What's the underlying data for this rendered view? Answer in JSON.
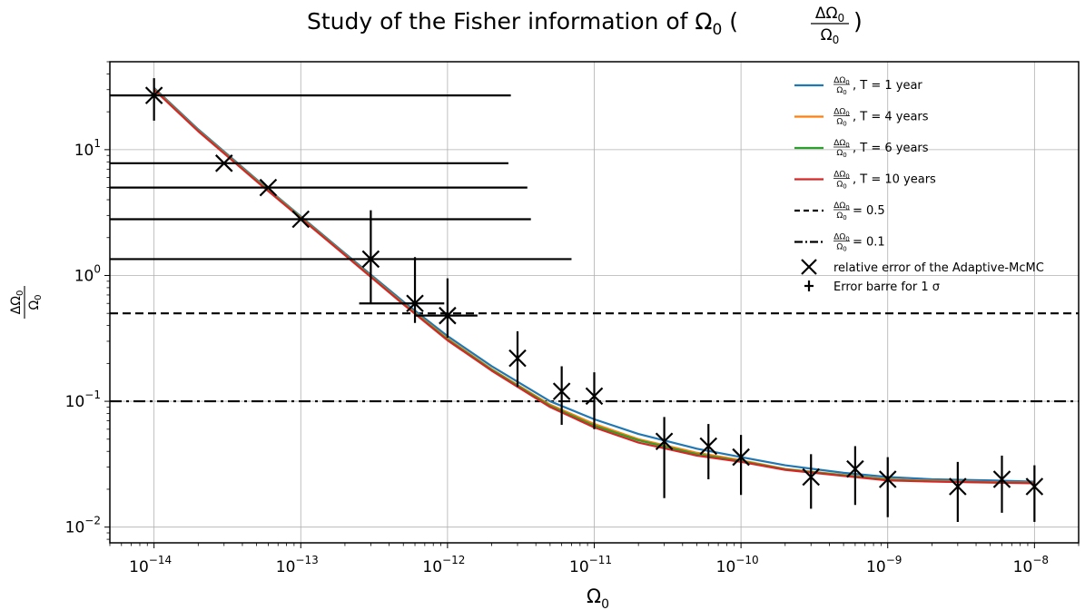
{
  "chart_data": {
    "type": "line",
    "title": "Study of the Fisher information of Ω₀ (ΔΩ₀/Ω₀)",
    "title_parts": {
      "prefix": "Study of the Fisher information of Ω",
      "sub": "0",
      "frac_num": "ΔΩ",
      "frac_num_sub": "0",
      "frac_den": "Ω",
      "frac_den_sub": "0"
    },
    "xlabel": "Ω₀",
    "ylabel": "ΔΩ₀/Ω₀",
    "x_scale": "log",
    "y_scale": "log",
    "xlim": [
      5e-15,
      2e-08
    ],
    "ylim": [
      0.0075,
      50
    ],
    "grid": true,
    "legend_position": "top-right",
    "x_ticks": [
      {
        "value": 1e-14,
        "base": "10",
        "exp": "−14"
      },
      {
        "value": 1e-13,
        "base": "10",
        "exp": "−13"
      },
      {
        "value": 1e-12,
        "base": "10",
        "exp": "−12"
      },
      {
        "value": 1e-11,
        "base": "10",
        "exp": "−11"
      },
      {
        "value": 1e-10,
        "base": "10",
        "exp": "−10"
      },
      {
        "value": 1e-09,
        "base": "10",
        "exp": "−9"
      },
      {
        "value": 1e-08,
        "base": "10",
        "exp": "−8"
      }
    ],
    "y_ticks": [
      {
        "value": 10,
        "base": "10",
        "exp": "1"
      },
      {
        "value": 1,
        "base": "10",
        "exp": "0"
      },
      {
        "value": 0.1,
        "base": "10",
        "exp": "−1"
      },
      {
        "value": 0.01,
        "base": "10",
        "exp": "−2"
      }
    ],
    "series": [
      {
        "name": "ΔΩ₀/Ω₀, T = 1 year",
        "legend_suffix": ", T = 1 year",
        "color": "#1f77b4",
        "style": "solid",
        "x": [
          1e-14,
          2e-14,
          5e-14,
          1e-13,
          2e-13,
          5e-13,
          1e-12,
          2e-12,
          5e-12,
          1e-11,
          2e-11,
          5e-11,
          1e-10,
          2e-10,
          5e-10,
          1e-09,
          2e-09,
          5e-09,
          1e-08
        ],
        "y": [
          31,
          14.5,
          5.8,
          2.95,
          1.5,
          0.62,
          0.33,
          0.19,
          0.1,
          0.072,
          0.055,
          0.042,
          0.036,
          0.031,
          0.027,
          0.025,
          0.024,
          0.0235,
          0.023
        ]
      },
      {
        "name": "ΔΩ₀/Ω₀, T = 4 years",
        "legend_suffix": ", T = 4 years",
        "color": "#ff7f0e",
        "style": "solid",
        "x": [
          1e-14,
          2e-14,
          5e-14,
          1e-13,
          2e-13,
          5e-13,
          1e-12,
          2e-12,
          5e-12,
          1e-11,
          2e-11,
          5e-11,
          1e-10,
          2e-10,
          5e-10,
          1e-09,
          2e-09,
          5e-09,
          1e-08
        ],
        "y": [
          30.5,
          14.2,
          5.7,
          2.9,
          1.47,
          0.6,
          0.315,
          0.18,
          0.094,
          0.066,
          0.05,
          0.039,
          0.034,
          0.029,
          0.026,
          0.024,
          0.0233,
          0.0228,
          0.0225
        ]
      },
      {
        "name": "ΔΩ₀/Ω₀, T = 6 years",
        "legend_suffix": ", T = 6 years",
        "color": "#2ca02c",
        "style": "solid",
        "x": [
          1e-14,
          2e-14,
          5e-14,
          1e-13,
          2e-13,
          5e-13,
          1e-12,
          2e-12,
          5e-12,
          1e-11,
          2e-11,
          5e-11,
          1e-10,
          2e-10,
          5e-10,
          1e-09,
          2e-09,
          5e-09,
          1e-08
        ],
        "y": [
          30.2,
          14.1,
          5.65,
          2.88,
          1.46,
          0.595,
          0.31,
          0.178,
          0.092,
          0.064,
          0.049,
          0.038,
          0.0335,
          0.0288,
          0.0258,
          0.0238,
          0.0231,
          0.0227,
          0.0224
        ]
      },
      {
        "name": "ΔΩ₀/Ω₀, T = 10 years",
        "legend_suffix": ", T = 10 years",
        "color": "#d62728",
        "style": "solid",
        "x": [
          1e-14,
          2e-14,
          5e-14,
          1e-13,
          2e-13,
          5e-13,
          1e-12,
          2e-12,
          5e-12,
          1e-11,
          2e-11,
          5e-11,
          1e-10,
          2e-10,
          5e-10,
          1e-09,
          2e-09,
          5e-09,
          1e-08
        ],
        "y": [
          30,
          14,
          5.6,
          2.85,
          1.45,
          0.59,
          0.305,
          0.175,
          0.09,
          0.062,
          0.047,
          0.037,
          0.033,
          0.0285,
          0.0255,
          0.0235,
          0.023,
          0.0226,
          0.0223
        ]
      }
    ],
    "reference_lines": [
      {
        "name": "ΔΩ₀/Ω₀ = 0.5",
        "legend_suffix": "= 0.5",
        "y": 0.5,
        "color": "#000000",
        "style": "dashed"
      },
      {
        "name": "ΔΩ₀/Ω₀ = 0.1",
        "legend_suffix": "= 0.1",
        "y": 0.1,
        "color": "#000000",
        "style": "dashdot"
      }
    ],
    "mcmc_points": {
      "name": "relative error of the Adaptive-McMC",
      "errorbar_name": "Error barre for 1 σ",
      "points": [
        {
          "x": 1e-14,
          "y": 27,
          "ylo": 17,
          "yhi": 37,
          "xlo": 5e-15,
          "xhi": 2.7e-12
        },
        {
          "x": 3e-14,
          "y": 7.8,
          "xlo": 5e-15,
          "xhi": 2.6e-12
        },
        {
          "x": 6e-14,
          "y": 5.0,
          "xlo": 5e-15,
          "xhi": 3.5e-12
        },
        {
          "x": 1e-13,
          "y": 2.8,
          "xlo": 5e-15,
          "xhi": 3.7e-12
        },
        {
          "x": 3e-13,
          "y": 1.35,
          "ylo": 0.6,
          "yhi": 3.3,
          "xlo": 5e-15,
          "xhi": 7e-12
        },
        {
          "x": 6e-13,
          "y": 0.6,
          "ylo": 0.42,
          "yhi": 1.4,
          "xlo": 2.5e-13,
          "xhi": 9.5e-13
        },
        {
          "x": 1e-12,
          "y": 0.48,
          "ylo": 0.32,
          "yhi": 0.95,
          "xlo": 6e-13,
          "xhi": 1.6e-12
        },
        {
          "x": 3e-12,
          "y": 0.22,
          "ylo": 0.13,
          "yhi": 0.36
        },
        {
          "x": 6e-12,
          "y": 0.12,
          "ylo": 0.065,
          "yhi": 0.19
        },
        {
          "x": 1e-11,
          "y": 0.11,
          "ylo": 0.06,
          "yhi": 0.17
        },
        {
          "x": 3e-11,
          "y": 0.048,
          "ylo": 0.017,
          "yhi": 0.075
        },
        {
          "x": 6e-11,
          "y": 0.044,
          "ylo": 0.024,
          "yhi": 0.066
        },
        {
          "x": 1e-10,
          "y": 0.036,
          "ylo": 0.018,
          "yhi": 0.054
        },
        {
          "x": 3e-10,
          "y": 0.025,
          "ylo": 0.014,
          "yhi": 0.038
        },
        {
          "x": 6e-10,
          "y": 0.029,
          "ylo": 0.015,
          "yhi": 0.044
        },
        {
          "x": 1e-09,
          "y": 0.024,
          "ylo": 0.012,
          "yhi": 0.036
        },
        {
          "x": 3e-09,
          "y": 0.021,
          "ylo": 0.011,
          "yhi": 0.033
        },
        {
          "x": 6e-09,
          "y": 0.024,
          "ylo": 0.013,
          "yhi": 0.037
        },
        {
          "x": 1e-08,
          "y": 0.021,
          "ylo": 0.011,
          "yhi": 0.031
        }
      ]
    }
  }
}
